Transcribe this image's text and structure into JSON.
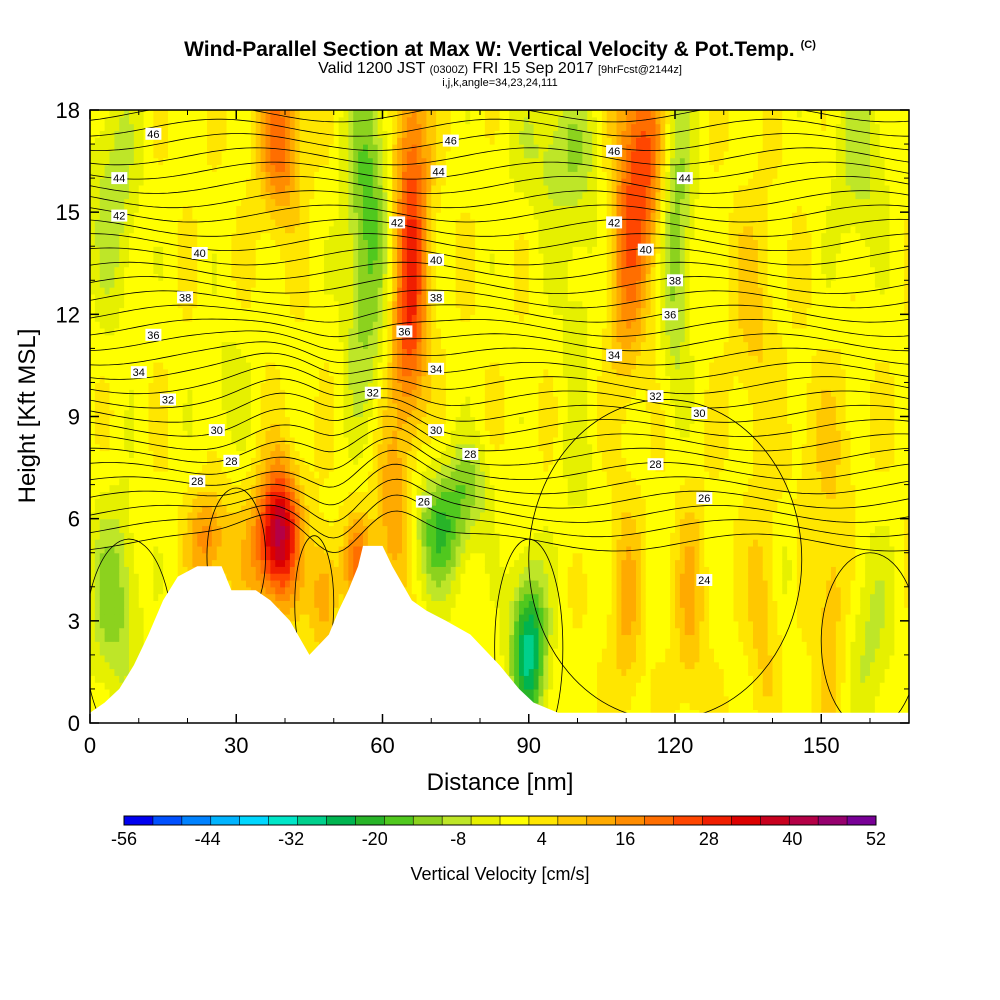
{
  "chart_data": {
    "type": "heatmap",
    "title": "Wind-Parallel Section at Max W: Vertical Velocity & Pot.Temp.",
    "title_tag": "(C)",
    "subtitle_valid": "Valid 1200 JST",
    "subtitle_utc": "(0300Z)",
    "subtitle_date": "FRI 15 Sep 2017",
    "subtitle_fcst": "[9hrFcst@2144z]",
    "subtitle_index": "i,j,k,angle=34,23,24,111",
    "xlabel": "Distance [nm]",
    "ylabel": "Height [Kft MSL]",
    "xlim": [
      0,
      168
    ],
    "ylim": [
      0,
      18
    ],
    "xticks": [
      0,
      30,
      60,
      90,
      120,
      150
    ],
    "yticks": [
      0,
      3,
      6,
      9,
      12,
      15,
      18
    ],
    "colorbar": {
      "label": "Vertical Velocity [cm/s]",
      "tick_labels": [
        "-56",
        "-44",
        "-32",
        "-20",
        "-8",
        "4",
        "16",
        "28",
        "40",
        "52"
      ],
      "min": -56,
      "max": 52,
      "colors": [
        "#0000f0",
        "#0050ff",
        "#0082ff",
        "#00b4ff",
        "#00d7ff",
        "#00e6c8",
        "#00d08c",
        "#00b450",
        "#28b428",
        "#50c81e",
        "#8cd21e",
        "#bee628",
        "#e6f000",
        "#ffff00",
        "#ffe600",
        "#ffc800",
        "#ffaa00",
        "#ff8c00",
        "#ff6e00",
        "#ff4600",
        "#f01e00",
        "#dc0000",
        "#c8001e",
        "#b40046",
        "#96006e",
        "#780096"
      ]
    },
    "theta_contour_labels": [
      {
        "text": "46",
        "x": 13,
        "y": 17.3
      },
      {
        "text": "44",
        "x": 6,
        "y": 16.0
      },
      {
        "text": "42",
        "x": 6,
        "y": 14.9
      },
      {
        "text": "40",
        "x": 22.5,
        "y": 13.8
      },
      {
        "text": "38",
        "x": 19.5,
        "y": 12.5
      },
      {
        "text": "36",
        "x": 13,
        "y": 11.4
      },
      {
        "text": "34",
        "x": 10,
        "y": 10.3
      },
      {
        "text": "32",
        "x": 16,
        "y": 9.5
      },
      {
        "text": "30",
        "x": 26,
        "y": 8.6
      },
      {
        "text": "28",
        "x": 29,
        "y": 7.7
      },
      {
        "text": "28",
        "x": 22,
        "y": 7.1
      },
      {
        "text": "46",
        "x": 74,
        "y": 17.1
      },
      {
        "text": "44",
        "x": 71.5,
        "y": 16.2
      },
      {
        "text": "42",
        "x": 63,
        "y": 14.7
      },
      {
        "text": "40",
        "x": 71,
        "y": 13.6
      },
      {
        "text": "38",
        "x": 71,
        "y": 12.5
      },
      {
        "text": "36",
        "x": 64.5,
        "y": 11.5
      },
      {
        "text": "34",
        "x": 71,
        "y": 10.4
      },
      {
        "text": "32",
        "x": 58,
        "y": 9.7
      },
      {
        "text": "30",
        "x": 71,
        "y": 8.6
      },
      {
        "text": "28",
        "x": 78,
        "y": 7.9
      },
      {
        "text": "26",
        "x": 68.5,
        "y": 6.5
      },
      {
        "text": "46",
        "x": 107.5,
        "y": 16.8
      },
      {
        "text": "44",
        "x": 122,
        "y": 16.0
      },
      {
        "text": "42",
        "x": 107.5,
        "y": 14.7
      },
      {
        "text": "40",
        "x": 114,
        "y": 13.9
      },
      {
        "text": "38",
        "x": 120,
        "y": 13.0
      },
      {
        "text": "36",
        "x": 119,
        "y": 12.0
      },
      {
        "text": "34",
        "x": 107.5,
        "y": 10.8
      },
      {
        "text": "32",
        "x": 116,
        "y": 9.6
      },
      {
        "text": "30",
        "x": 125,
        "y": 9.1
      },
      {
        "text": "28",
        "x": 116,
        "y": 7.6
      },
      {
        "text": "26",
        "x": 126,
        "y": 6.6
      },
      {
        "text": "24",
        "x": 126,
        "y": 4.2
      }
    ],
    "terrain": [
      [
        0,
        0.3
      ],
      [
        3,
        0.6
      ],
      [
        6,
        1.0
      ],
      [
        9,
        1.7
      ],
      [
        12,
        2.6
      ],
      [
        15,
        3.6
      ],
      [
        18,
        4.3
      ],
      [
        22,
        4.6
      ],
      [
        27,
        4.6
      ],
      [
        29,
        3.9
      ],
      [
        34,
        3.9
      ],
      [
        37,
        3.6
      ],
      [
        41,
        3.0
      ],
      [
        45,
        2.0
      ],
      [
        49,
        2.6
      ],
      [
        51,
        3.3
      ],
      [
        53,
        3.9
      ],
      [
        55,
        4.6
      ],
      [
        56,
        5.2
      ],
      [
        60,
        5.2
      ],
      [
        62,
        4.6
      ],
      [
        66,
        3.6
      ],
      [
        69,
        3.3
      ],
      [
        73,
        3.0
      ],
      [
        78,
        2.6
      ],
      [
        84,
        1.7
      ],
      [
        88,
        1.0
      ],
      [
        91,
        0.6
      ],
      [
        96,
        0.3
      ],
      [
        168,
        0.3
      ]
    ],
    "velocity_features": [
      {
        "x": 39,
        "y": 5.6,
        "sx": 2.8,
        "sy": 1.4,
        "v": 38
      },
      {
        "x": 33,
        "y": 5.2,
        "sx": 3.5,
        "sy": 1.2,
        "v": 14
      },
      {
        "x": 24,
        "y": 5.4,
        "sx": 2.5,
        "sy": 1.0,
        "v": 16
      },
      {
        "x": 48,
        "y": 3.8,
        "sx": 2.0,
        "sy": 1.2,
        "v": 14
      },
      {
        "x": 55,
        "y": 4.8,
        "sx": 2.0,
        "sy": 0.9,
        "v": 18
      },
      {
        "x": 62,
        "y": 6.0,
        "sx": 2.4,
        "sy": 1.8,
        "v": 14
      },
      {
        "x": 66,
        "y": 15.0,
        "sx": 2.6,
        "sy": 3.5,
        "v": 24
      },
      {
        "x": 65,
        "y": 11.0,
        "sx": 2.4,
        "sy": 1.8,
        "v": 12
      },
      {
        "x": 39,
        "y": 17.0,
        "sx": 3.0,
        "sy": 1.6,
        "v": 20
      },
      {
        "x": 113,
        "y": 16.5,
        "sx": 4.0,
        "sy": 2.3,
        "v": 26
      },
      {
        "x": 110,
        "y": 12.5,
        "sx": 2.6,
        "sy": 2.0,
        "v": 12
      },
      {
        "x": 110,
        "y": 3.5,
        "sx": 2.2,
        "sy": 2.2,
        "v": 10
      },
      {
        "x": 123,
        "y": 3.5,
        "sx": 2.2,
        "sy": 2.2,
        "v": 10
      },
      {
        "x": 138,
        "y": 3.6,
        "sx": 2.2,
        "sy": 2.2,
        "v": 8
      },
      {
        "x": 152,
        "y": 3.6,
        "sx": 2.5,
        "sy": 2.4,
        "v": 9
      },
      {
        "x": 136,
        "y": 12.2,
        "sx": 3.0,
        "sy": 2.2,
        "v": 7
      },
      {
        "x": 90,
        "y": 2.2,
        "sx": 2.6,
        "sy": 1.6,
        "v": -30
      },
      {
        "x": 72,
        "y": 5.7,
        "sx": 4.0,
        "sy": 1.3,
        "v": -19
      },
      {
        "x": 78,
        "y": 7.0,
        "sx": 3.0,
        "sy": 0.9,
        "v": -10
      },
      {
        "x": 57,
        "y": 15.5,
        "sx": 3.2,
        "sy": 3.0,
        "v": -17
      },
      {
        "x": 56,
        "y": 11.0,
        "sx": 2.8,
        "sy": 1.8,
        "v": -6
      },
      {
        "x": 97,
        "y": 16.8,
        "sx": 7.0,
        "sy": 1.5,
        "v": -10
      },
      {
        "x": 100,
        "y": 12.5,
        "sx": 3.0,
        "sy": 2.5,
        "v": -5
      },
      {
        "x": 120,
        "y": 15.6,
        "sx": 2.6,
        "sy": 2.5,
        "v": -16
      },
      {
        "x": 120,
        "y": 11.5,
        "sx": 2.0,
        "sy": 2.0,
        "v": -6
      },
      {
        "x": 5,
        "y": 3.6,
        "sx": 3.5,
        "sy": 2.0,
        "v": -14
      },
      {
        "x": 5,
        "y": 15.5,
        "sx": 3.5,
        "sy": 2.5,
        "v": -10
      },
      {
        "x": 28,
        "y": 9.8,
        "sx": 3.5,
        "sy": 1.4,
        "v": -5
      },
      {
        "x": 32,
        "y": 5.4,
        "sx": 2.0,
        "sy": 1.0,
        "v": -7
      },
      {
        "x": 160,
        "y": 2.5,
        "sx": 3.5,
        "sy": 2.0,
        "v": -8
      },
      {
        "x": 158,
        "y": 16.5,
        "sx": 4.0,
        "sy": 2.0,
        "v": -9
      },
      {
        "x": 143,
        "y": 4.5,
        "sx": 1.5,
        "sy": 1.0,
        "v": -5
      },
      {
        "x": 150,
        "y": 8.5,
        "sx": 6.0,
        "sy": 1.5,
        "v": 4
      },
      {
        "x": 100,
        "y": 7.0,
        "sx": 2.5,
        "sy": 1.5,
        "v": -4
      }
    ],
    "background_velocity": 1
  }
}
